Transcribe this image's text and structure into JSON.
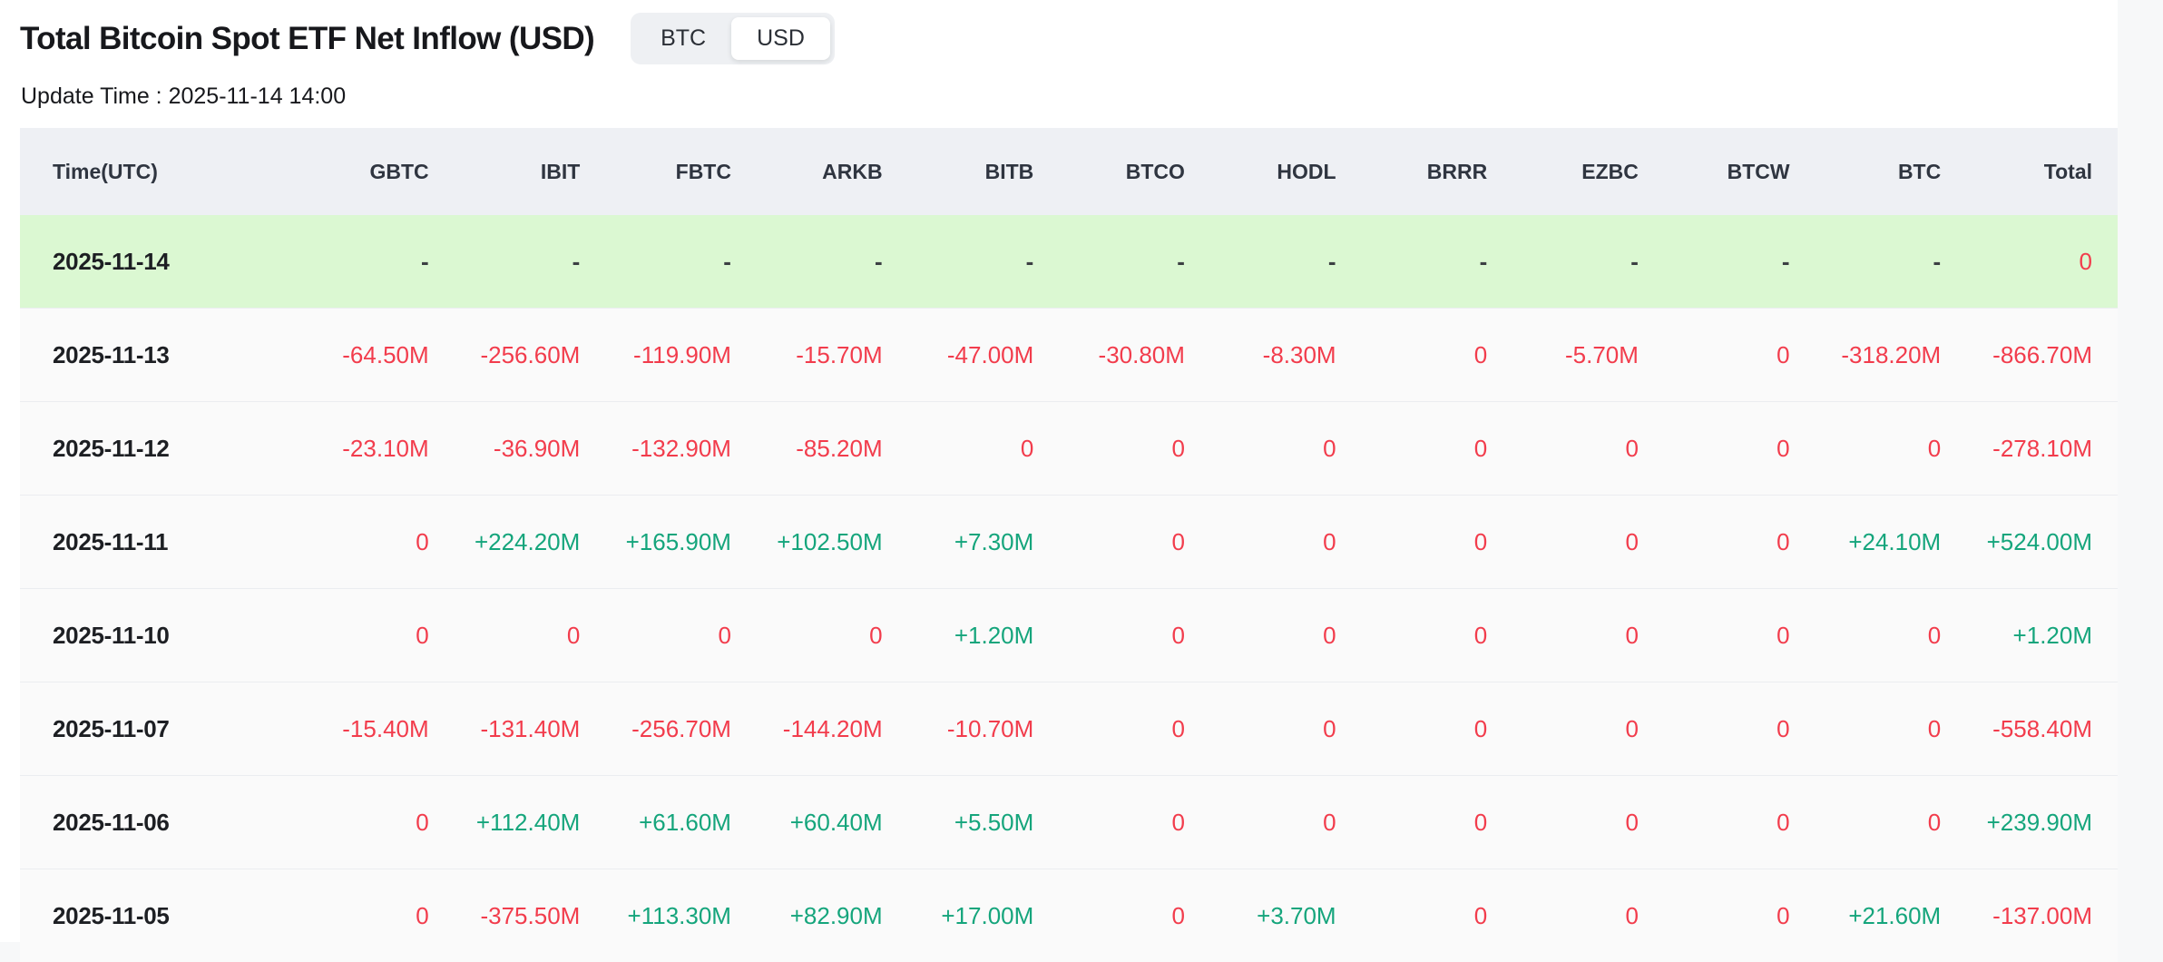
{
  "header": {
    "title": "Total Bitcoin Spot ETF Net Inflow (USD)",
    "update_time": "Update Time : 2025-11-14 14:00",
    "toggle": {
      "options": [
        "BTC",
        "USD"
      ],
      "selected": "USD"
    }
  },
  "colors": {
    "positive": "#15a57c",
    "negative": "#f23c4c",
    "highlight_row": "#dbf8d2",
    "header_bg": "#eef0f4"
  },
  "table": {
    "columns": [
      "Time(UTC)",
      "GBTC",
      "IBIT",
      "FBTC",
      "ARKB",
      "BITB",
      "BTCO",
      "HODL",
      "BRRR",
      "EZBC",
      "BTCW",
      "BTC",
      "Total"
    ],
    "rows": [
      {
        "date": "2025-11-14",
        "highlight": true,
        "cells": [
          {
            "t": "-",
            "c": "dash"
          },
          {
            "t": "-",
            "c": "dash"
          },
          {
            "t": "-",
            "c": "dash"
          },
          {
            "t": "-",
            "c": "dash"
          },
          {
            "t": "-",
            "c": "dash"
          },
          {
            "t": "-",
            "c": "dash"
          },
          {
            "t": "-",
            "c": "dash"
          },
          {
            "t": "-",
            "c": "dash"
          },
          {
            "t": "-",
            "c": "dash"
          },
          {
            "t": "-",
            "c": "dash"
          },
          {
            "t": "-",
            "c": "dash"
          },
          {
            "t": "0",
            "c": "red"
          }
        ]
      },
      {
        "date": "2025-11-13",
        "highlight": false,
        "cells": [
          {
            "t": "-64.50M",
            "c": "red"
          },
          {
            "t": "-256.60M",
            "c": "red"
          },
          {
            "t": "-119.90M",
            "c": "red"
          },
          {
            "t": "-15.70M",
            "c": "red"
          },
          {
            "t": "-47.00M",
            "c": "red"
          },
          {
            "t": "-30.80M",
            "c": "red"
          },
          {
            "t": "-8.30M",
            "c": "red"
          },
          {
            "t": "0",
            "c": "red"
          },
          {
            "t": "-5.70M",
            "c": "red"
          },
          {
            "t": "0",
            "c": "red"
          },
          {
            "t": "-318.20M",
            "c": "red"
          },
          {
            "t": "-866.70M",
            "c": "red"
          }
        ]
      },
      {
        "date": "2025-11-12",
        "highlight": false,
        "cells": [
          {
            "t": "-23.10M",
            "c": "red"
          },
          {
            "t": "-36.90M",
            "c": "red"
          },
          {
            "t": "-132.90M",
            "c": "red"
          },
          {
            "t": "-85.20M",
            "c": "red"
          },
          {
            "t": "0",
            "c": "red"
          },
          {
            "t": "0",
            "c": "red"
          },
          {
            "t": "0",
            "c": "red"
          },
          {
            "t": "0",
            "c": "red"
          },
          {
            "t": "0",
            "c": "red"
          },
          {
            "t": "0",
            "c": "red"
          },
          {
            "t": "0",
            "c": "red"
          },
          {
            "t": "-278.10M",
            "c": "red"
          }
        ]
      },
      {
        "date": "2025-11-11",
        "highlight": false,
        "cells": [
          {
            "t": "0",
            "c": "red"
          },
          {
            "t": "+224.20M",
            "c": "green"
          },
          {
            "t": "+165.90M",
            "c": "green"
          },
          {
            "t": "+102.50M",
            "c": "green"
          },
          {
            "t": "+7.30M",
            "c": "green"
          },
          {
            "t": "0",
            "c": "red"
          },
          {
            "t": "0",
            "c": "red"
          },
          {
            "t": "0",
            "c": "red"
          },
          {
            "t": "0",
            "c": "red"
          },
          {
            "t": "0",
            "c": "red"
          },
          {
            "t": "+24.10M",
            "c": "green"
          },
          {
            "t": "+524.00M",
            "c": "green"
          }
        ]
      },
      {
        "date": "2025-11-10",
        "highlight": false,
        "cells": [
          {
            "t": "0",
            "c": "red"
          },
          {
            "t": "0",
            "c": "red"
          },
          {
            "t": "0",
            "c": "red"
          },
          {
            "t": "0",
            "c": "red"
          },
          {
            "t": "+1.20M",
            "c": "green"
          },
          {
            "t": "0",
            "c": "red"
          },
          {
            "t": "0",
            "c": "red"
          },
          {
            "t": "0",
            "c": "red"
          },
          {
            "t": "0",
            "c": "red"
          },
          {
            "t": "0",
            "c": "red"
          },
          {
            "t": "0",
            "c": "red"
          },
          {
            "t": "+1.20M",
            "c": "green"
          }
        ]
      },
      {
        "date": "2025-11-07",
        "highlight": false,
        "cells": [
          {
            "t": "-15.40M",
            "c": "red"
          },
          {
            "t": "-131.40M",
            "c": "red"
          },
          {
            "t": "-256.70M",
            "c": "red"
          },
          {
            "t": "-144.20M",
            "c": "red"
          },
          {
            "t": "-10.70M",
            "c": "red"
          },
          {
            "t": "0",
            "c": "red"
          },
          {
            "t": "0",
            "c": "red"
          },
          {
            "t": "0",
            "c": "red"
          },
          {
            "t": "0",
            "c": "red"
          },
          {
            "t": "0",
            "c": "red"
          },
          {
            "t": "0",
            "c": "red"
          },
          {
            "t": "-558.40M",
            "c": "red"
          }
        ]
      },
      {
        "date": "2025-11-06",
        "highlight": false,
        "cells": [
          {
            "t": "0",
            "c": "red"
          },
          {
            "t": "+112.40M",
            "c": "green"
          },
          {
            "t": "+61.60M",
            "c": "green"
          },
          {
            "t": "+60.40M",
            "c": "green"
          },
          {
            "t": "+5.50M",
            "c": "green"
          },
          {
            "t": "0",
            "c": "red"
          },
          {
            "t": "0",
            "c": "red"
          },
          {
            "t": "0",
            "c": "red"
          },
          {
            "t": "0",
            "c": "red"
          },
          {
            "t": "0",
            "c": "red"
          },
          {
            "t": "0",
            "c": "red"
          },
          {
            "t": "+239.90M",
            "c": "green"
          }
        ]
      },
      {
        "date": "2025-11-05",
        "highlight": false,
        "cells": [
          {
            "t": "0",
            "c": "red"
          },
          {
            "t": "-375.50M",
            "c": "red"
          },
          {
            "t": "+113.30M",
            "c": "green"
          },
          {
            "t": "+82.90M",
            "c": "green"
          },
          {
            "t": "+17.00M",
            "c": "green"
          },
          {
            "t": "0",
            "c": "red"
          },
          {
            "t": "+3.70M",
            "c": "green"
          },
          {
            "t": "0",
            "c": "red"
          },
          {
            "t": "0",
            "c": "red"
          },
          {
            "t": "0",
            "c": "red"
          },
          {
            "t": "+21.60M",
            "c": "green"
          },
          {
            "t": "-137.00M",
            "c": "red"
          }
        ]
      }
    ]
  }
}
